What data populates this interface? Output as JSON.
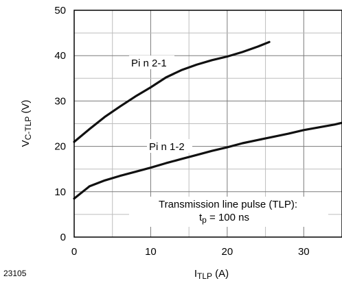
{
  "figure_id": "23105",
  "chart_data": {
    "type": "line",
    "xlim": [
      0,
      35
    ],
    "ylim": [
      0,
      50
    ],
    "x_ticks": [
      0,
      10,
      20,
      30
    ],
    "y_ticks": [
      0,
      10,
      20,
      30,
      40,
      50
    ],
    "grid": true,
    "xlabel": {
      "main": "I",
      "sub": "TLP",
      "unit": " (A)"
    },
    "ylabel": {
      "main": "V",
      "sub": "C-TLP",
      "unit": " (V)"
    },
    "annotation": {
      "line1": "Transmission line pulse (TLP):",
      "line2_main": "t",
      "line2_sub": "p",
      "line2_rest": " = 100 ns"
    },
    "series": [
      {
        "name": "Pi n 2-1",
        "x": [
          0,
          2,
          4,
          6,
          8,
          10,
          12,
          14,
          16,
          18,
          20,
          22,
          24,
          25.5
        ],
        "y": [
          21,
          23.8,
          26.5,
          28.8,
          31,
          33,
          35.2,
          36.8,
          38,
          39,
          39.8,
          40.8,
          42,
          43
        ]
      },
      {
        "name": "Pi n 1-2",
        "x": [
          0,
          2,
          4,
          6,
          8,
          10,
          12,
          14,
          16,
          18,
          20,
          22,
          24,
          26,
          28,
          30,
          32,
          34,
          35
        ],
        "y": [
          8.5,
          11.2,
          12.5,
          13.5,
          14.4,
          15.3,
          16.3,
          17.2,
          18.1,
          19,
          19.8,
          20.7,
          21.4,
          22.1,
          22.8,
          23.6,
          24.2,
          24.8,
          25.2
        ]
      }
    ]
  }
}
